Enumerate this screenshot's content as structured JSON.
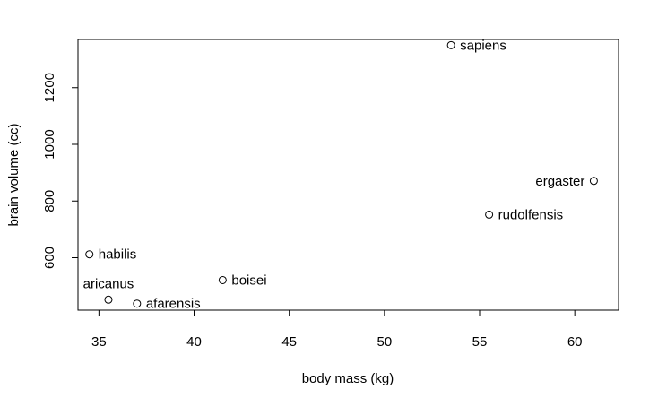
{
  "chart_data": {
    "type": "scatter",
    "xlabel": "body mass (kg)",
    "ylabel": "brain volume (cc)",
    "xlim": [
      33.9,
      62.3
    ],
    "ylim": [
      415,
      1370
    ],
    "xticks": [
      35,
      40,
      45,
      50,
      55,
      60
    ],
    "yticks": [
      600,
      800,
      1000,
      1200
    ],
    "grid": false,
    "marker": "open-circle",
    "points": [
      {
        "label": "afarensis",
        "x": 37.0,
        "y": 438,
        "label_pos": "right"
      },
      {
        "label": "aricanus",
        "x": 35.5,
        "y": 452,
        "label_pos": "top"
      },
      {
        "label": "habilis",
        "x": 34.5,
        "y": 612,
        "label_pos": "right"
      },
      {
        "label": "boisei",
        "x": 41.5,
        "y": 521,
        "label_pos": "right"
      },
      {
        "label": "rudolfensis",
        "x": 55.5,
        "y": 752,
        "label_pos": "right"
      },
      {
        "label": "ergaster",
        "x": 61.0,
        "y": 871,
        "label_pos": "left"
      },
      {
        "label": "sapiens",
        "x": 53.5,
        "y": 1350,
        "label_pos": "right"
      }
    ]
  }
}
